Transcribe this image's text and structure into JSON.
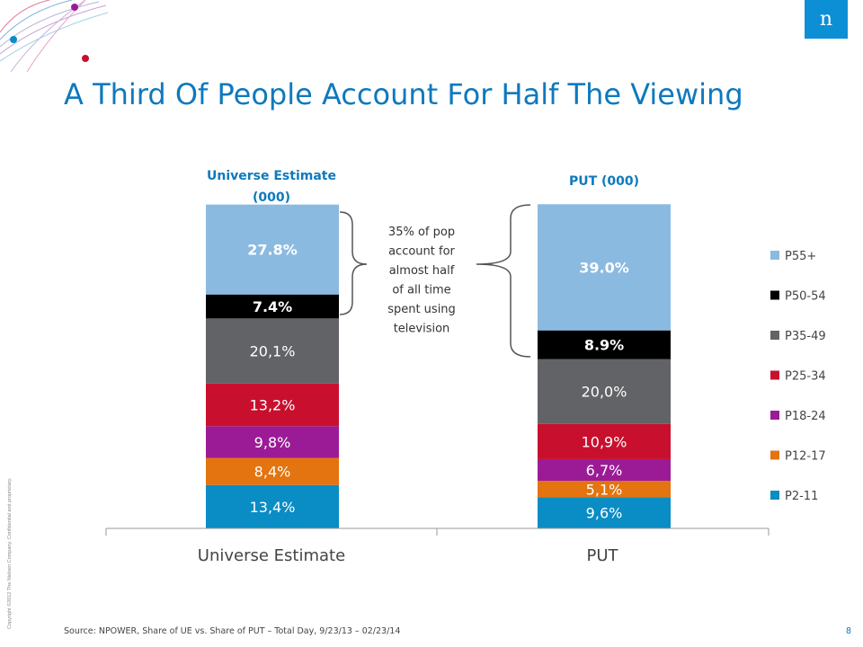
{
  "slide": {
    "title": "A Third Of People Account For Half The Viewing",
    "source": "Source:  NPOWER, Share of UE vs. Share of PUT – Total Day, 9/23/13 – 02/23/14",
    "page_number": "8",
    "copyright": "Copyright ©2012 The Nielsen Company. Confidential and proprietary.",
    "logo_text": "n"
  },
  "colors": {
    "title": "#0e79bd",
    "P55+": "#8bbae1",
    "P50-54": "#000000",
    "P35-49": "#626366",
    "P25-34": "#c8102e",
    "P18-24": "#9b1b96",
    "P12-17": "#e3740f",
    "P2-11": "#0a8cc4"
  },
  "chart_data": {
    "type": "bar",
    "stacked": true,
    "categories": [
      "Universe Estimate",
      "PUT"
    ],
    "column_headers": [
      "Universe Estimate\n(000)",
      "PUT (000)"
    ],
    "series": [
      {
        "name": "P2-11",
        "values": [
          13.4,
          9.6
        ],
        "labels": [
          "13,4%",
          "9,6%"
        ]
      },
      {
        "name": "P12-17",
        "values": [
          8.4,
          5.1
        ],
        "labels": [
          "8,4%",
          "5,1%"
        ]
      },
      {
        "name": "P18-24",
        "values": [
          9.8,
          6.7
        ],
        "labels": [
          "9,8%",
          "6,7%"
        ]
      },
      {
        "name": "P25-34",
        "values": [
          13.2,
          10.9
        ],
        "labels": [
          "13,2%",
          "10,9%"
        ]
      },
      {
        "name": "P35-49",
        "values": [
          20.1,
          20.0
        ],
        "labels": [
          "20,1%",
          "20,0%"
        ]
      },
      {
        "name": "P50-54",
        "values": [
          7.4,
          8.9
        ],
        "labels": [
          "7.4%",
          "8.9%"
        ]
      },
      {
        "name": "P55+",
        "values": [
          27.8,
          39.0
        ],
        "labels": [
          "27.8%",
          "39.0%"
        ]
      }
    ],
    "legend": [
      "P55+",
      "P50-54",
      "P35-49",
      "P25-34",
      "P18-24",
      "P12-17",
      "P2-11"
    ],
    "legend_position": "right",
    "annotation": "35% of pop\naccount for\nalmost  half\nof all time\nspent using\ntelevision",
    "ylim": [
      0,
      100
    ],
    "grid": false
  }
}
